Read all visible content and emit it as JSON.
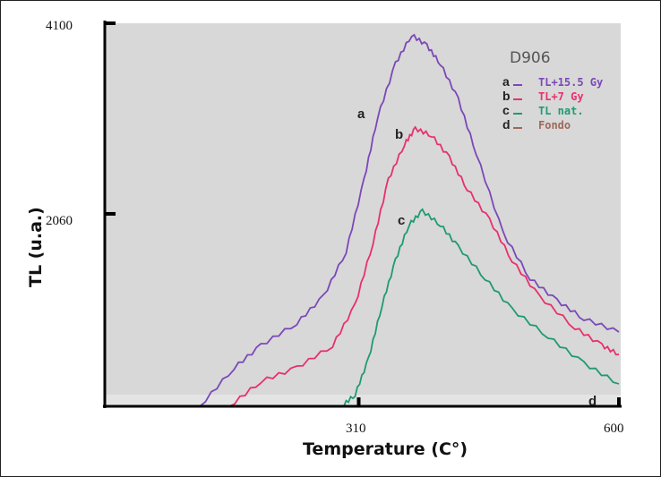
{
  "chart_data": {
    "type": "line",
    "title": "D906",
    "xlabel": "Temperature (C°)",
    "ylabel": "TL (u.a.)",
    "xlim": [
      27,
      600
    ],
    "ylim": [
      0,
      4100
    ],
    "xticks": [
      "310",
      "600"
    ],
    "xtick_values": [
      310,
      600
    ],
    "yticks": [
      "4100",
      "2060"
    ],
    "ytick_values": [
      4100,
      2060
    ],
    "grid": false,
    "legend_placement": "top-right",
    "series": [
      {
        "key": "a",
        "name": "TL+15.5 Gy",
        "color": "#7b48b8",
        "x": [
          133,
          171,
          201,
          241,
          271,
          296,
          316,
          331,
          351,
          369,
          386,
          401,
          421,
          441,
          471,
          501,
          531,
          561,
          600
        ],
        "y": [
          0,
          412,
          651,
          891,
          1178,
          1657,
          2424,
          3094,
          3669,
          3976,
          3860,
          3669,
          3286,
          2711,
          1849,
          1370,
          1130,
          939,
          795
        ]
      },
      {
        "key": "b",
        "name": "TL+7 Gy",
        "color": "#e8306e",
        "x": [
          166,
          201,
          241,
          281,
          306,
          326,
          343,
          361,
          373,
          391,
          411,
          431,
          456,
          481,
          511,
          551,
          581,
          600
        ],
        "y": [
          0,
          268,
          412,
          651,
          1082,
          1753,
          2424,
          2807,
          2970,
          2903,
          2663,
          2328,
          1993,
          1562,
          1178,
          843,
          651,
          556
        ]
      },
      {
        "key": "c",
        "name": "TL nat.",
        "color": "#1f9a72",
        "x": [
          291,
          306,
          321,
          336,
          351,
          366,
          381,
          401,
          421,
          451,
          481,
          521,
          561,
          600
        ],
        "y": [
          0,
          125,
          508,
          1082,
          1562,
          1945,
          2089,
          1945,
          1705,
          1370,
          1035,
          747,
          460,
          240
        ]
      },
      {
        "key": "d",
        "name": "Fondo",
        "color": "#a0685a",
        "x": [],
        "y": []
      }
    ],
    "curve_labels": [
      "a",
      "b",
      "c",
      "d"
    ]
  }
}
